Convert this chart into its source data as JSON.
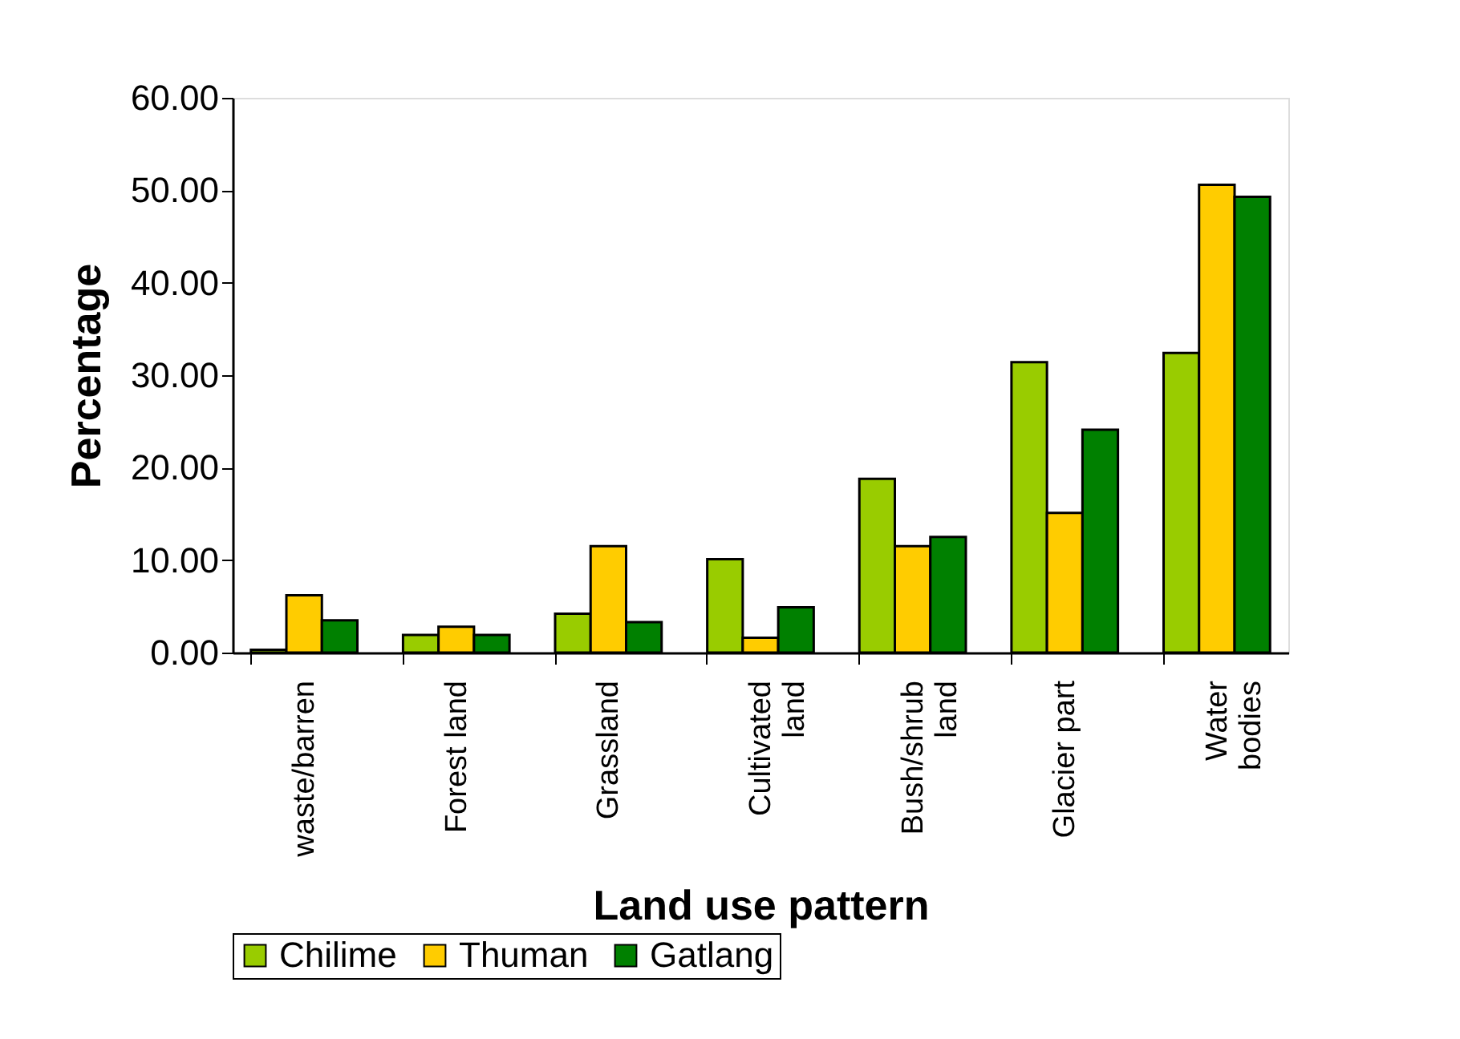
{
  "chart_data": {
    "type": "bar",
    "xlabel": "Land use pattern",
    "ylabel": "Percentage",
    "categories": [
      "waste/barren",
      "Forest land",
      "Grassland",
      "Cultivated\nland",
      "Bush/shrub\nland",
      "Glacier part",
      "Water\nbodies"
    ],
    "series": [
      {
        "name": "Chilime",
        "color": "#99cc00",
        "values": [
          0.3,
          1.9,
          4.2,
          10.1,
          18.8,
          31.4,
          32.4
        ]
      },
      {
        "name": "Thuman",
        "color": "#ffcc00",
        "values": [
          6.2,
          2.8,
          11.5,
          1.6,
          11.5,
          15.1,
          50.6
        ]
      },
      {
        "name": "Gatlang",
        "color": "#008000",
        "values": [
          3.5,
          1.9,
          3.3,
          4.9,
          12.5,
          24.1,
          49.3
        ]
      }
    ],
    "ylim": [
      0,
      60
    ],
    "yticks": [
      {
        "value": 0,
        "label": "0.00"
      },
      {
        "value": 10,
        "label": "10.00"
      },
      {
        "value": 20,
        "label": "20.00"
      },
      {
        "value": 30,
        "label": "30.00"
      },
      {
        "value": 40,
        "label": "40.00"
      },
      {
        "value": 50,
        "label": "50.00"
      },
      {
        "value": 60,
        "label": "60.00"
      }
    ],
    "legend": "bottom",
    "grid": false
  }
}
